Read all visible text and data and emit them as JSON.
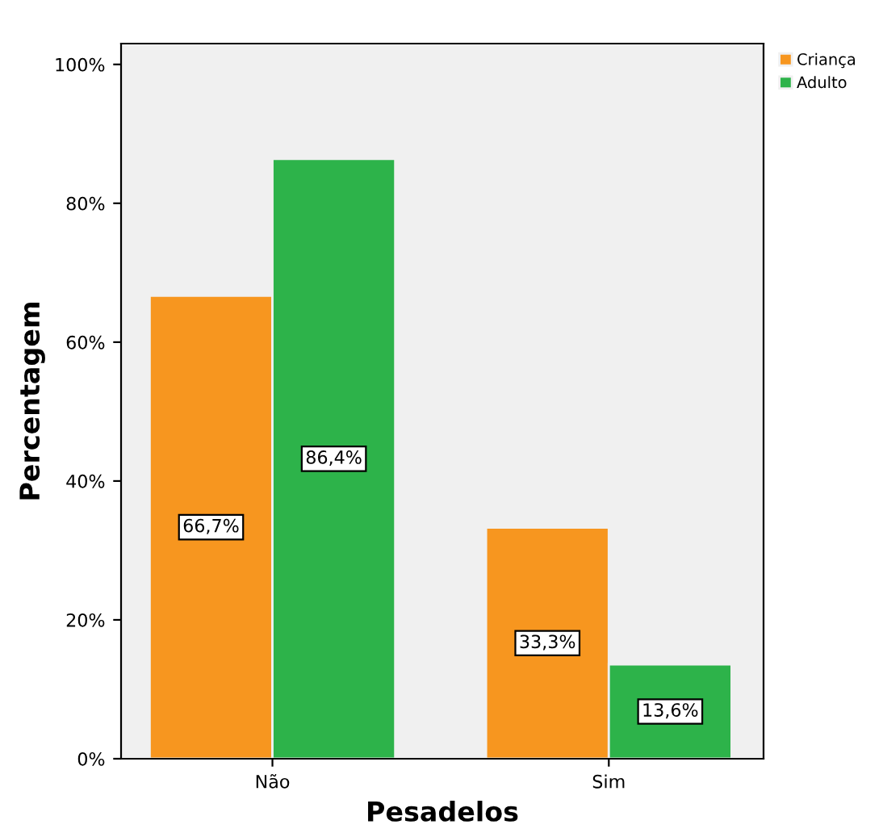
{
  "chart_data": {
    "type": "bar",
    "xlabel": "Pesadelos",
    "ylabel": "Percentagem",
    "categories": [
      "Não",
      "Sim"
    ],
    "series": [
      {
        "name": "Criança",
        "color": "#f7961f",
        "values": [
          66.7,
          33.3
        ],
        "value_labels": [
          "66,7%",
          "33,3%"
        ]
      },
      {
        "name": "Adulto",
        "color": "#2db34a",
        "values": [
          86.4,
          13.6
        ],
        "value_labels": [
          "86,4%",
          "13,6%"
        ]
      }
    ],
    "ylim": [
      0,
      103
    ],
    "yticks": [
      {
        "value": 0,
        "label": "0%"
      },
      {
        "value": 20,
        "label": "20%"
      },
      {
        "value": 40,
        "label": "40%"
      },
      {
        "value": 60,
        "label": "60%"
      },
      {
        "value": 80,
        "label": "80%"
      },
      {
        "value": 100,
        "label": "100%"
      }
    ],
    "grid": false,
    "legend": "top right"
  }
}
